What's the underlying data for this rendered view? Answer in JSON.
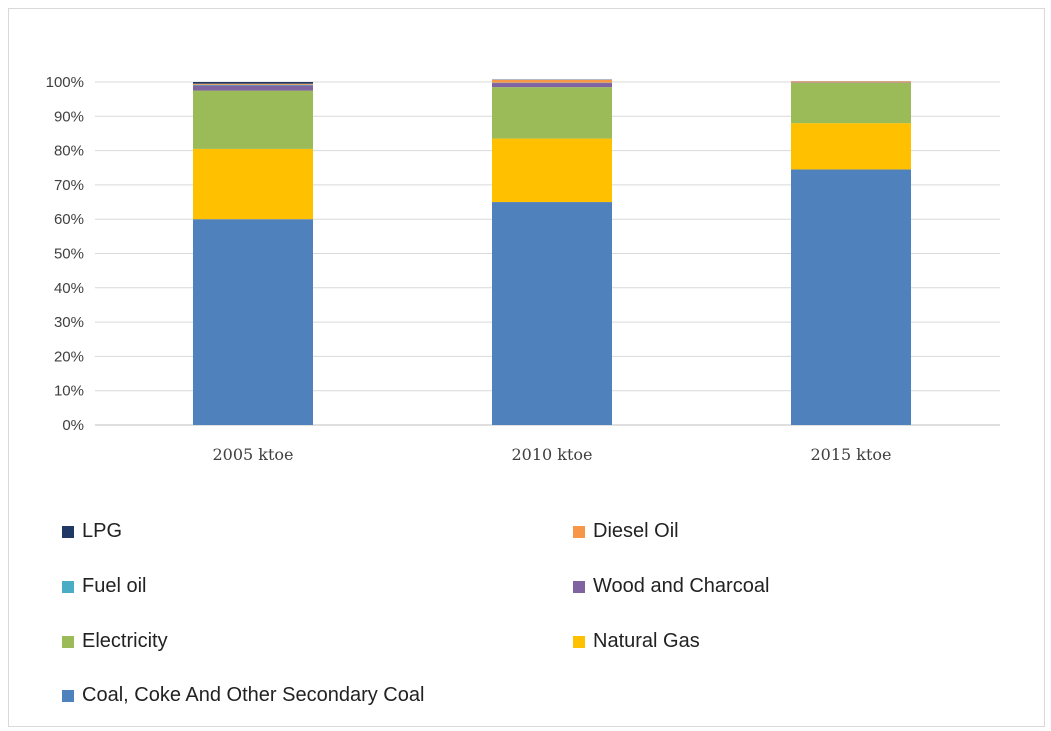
{
  "chart_data": {
    "type": "bar",
    "stacked": true,
    "percent_stacked": true,
    "title": "",
    "xlabel": "",
    "ylabel": "",
    "ylim": [
      0,
      100
    ],
    "y_ticks": [
      "0%",
      "10%",
      "20%",
      "30%",
      "40%",
      "50%",
      "60%",
      "70%",
      "80%",
      "90%",
      "100%"
    ],
    "grid": true,
    "legend_position": "bottom",
    "categories": [
      "2005 ktoe",
      "2010 ktoe",
      "2015 ktoe"
    ],
    "series": [
      {
        "name": "Coal, Coke And Other Secondary Coal",
        "color": "#4f81bd",
        "values": [
          60,
          65,
          74.5
        ]
      },
      {
        "name": "Natural Gas",
        "color": "#ffc000",
        "values": [
          20.5,
          18.5,
          13.5
        ]
      },
      {
        "name": "Electricity",
        "color": "#9bbb59",
        "values": [
          17,
          15,
          11.7
        ]
      },
      {
        "name": "Wood and Charcoal",
        "color": "#8064a2",
        "values": [
          1.5,
          1.2,
          0.1
        ]
      },
      {
        "name": "Fuel oil",
        "color": "#4bacc6",
        "values": [
          0.2,
          0.1,
          0.05
        ]
      },
      {
        "name": "Diesel Oil",
        "color": "#f79646",
        "values": [
          0.3,
          0.8,
          0.3
        ]
      },
      {
        "name": "LPG",
        "color": "#1f3864",
        "values": [
          0.5,
          0.1,
          0.05
        ]
      }
    ],
    "legend_order": [
      "LPG",
      "Diesel Oil",
      "Fuel oil",
      "Wood and Charcoal",
      "Electricity",
      "Natural Gas",
      "Coal, Coke And Other Secondary Coal"
    ]
  }
}
